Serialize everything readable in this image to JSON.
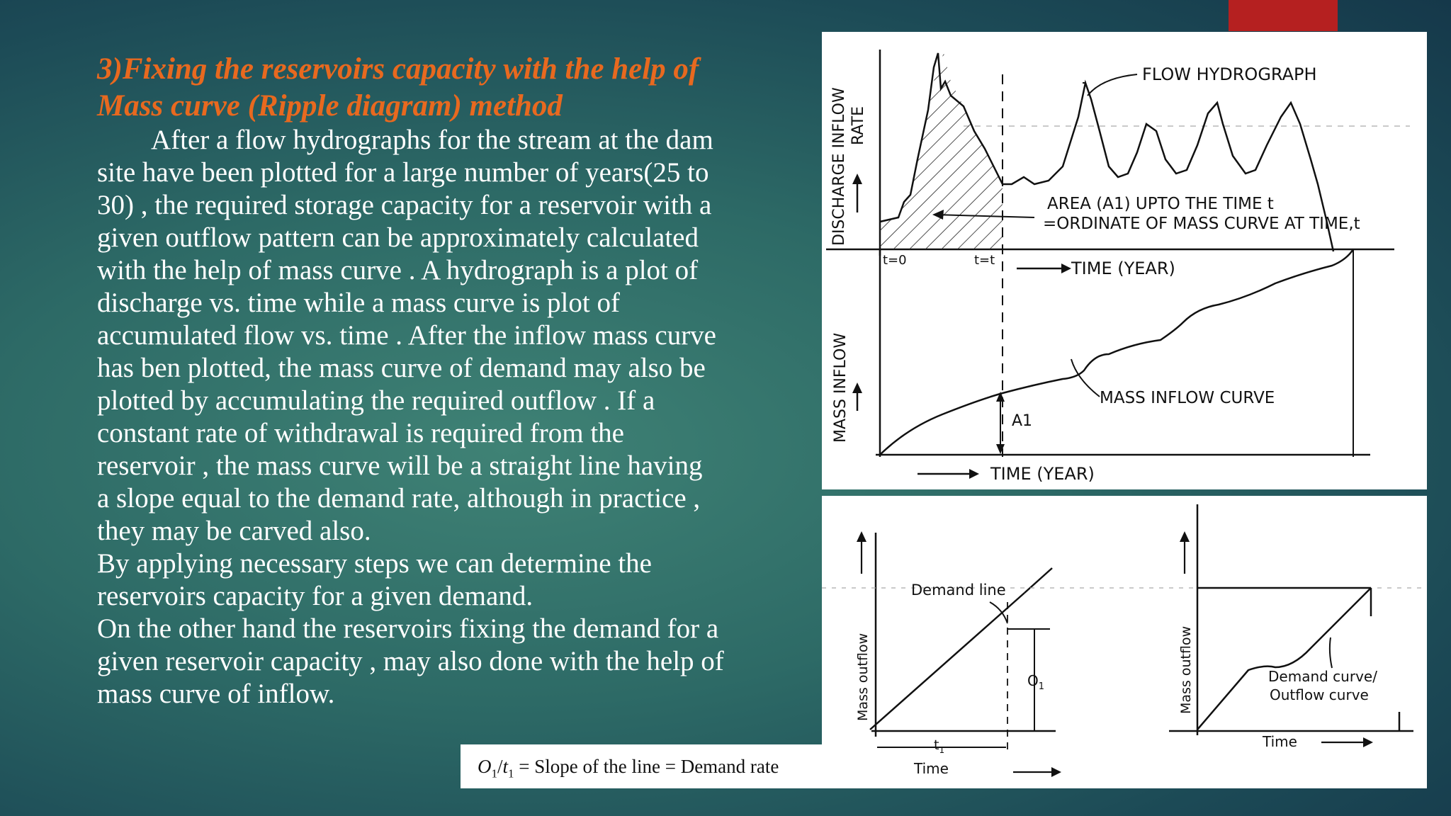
{
  "heading": {
    "line1": "3)Fixing the reservoirs capacity with the help of",
    "line2": "Mass curve (Ripple diagram) method"
  },
  "body": {
    "lines": [
      "After a flow hydrographs for the stream at the dam",
      "site have been plotted for a large number of years(25 to",
      "30) , the required storage capacity for a reservoir with a",
      "given outflow pattern can be approximately calculated",
      "with the help of mass curve . A hydrograph is a plot of",
      "discharge vs. time while a mass curve is plot of",
      "accumulated flow vs. time . After the inflow mass curve",
      "has ben plotted, the mass curve of demand may also be",
      "plotted by accumulating the required outflow . If a",
      "constant rate of  withdrawal is required from the",
      "reservoir , the mass curve will be a straight  line having",
      "a slope equal to the demand rate, although in practice ,",
      "they may be carved also.",
      "By applying necessary steps we can determine the",
      "reservoirs capacity for a given demand.",
      "On the other hand the reservoirs fixing the demand for a",
      "given reservoir capacity , may also done with the help of",
      "mass curve of inflow."
    ]
  },
  "formula": {
    "o": "O",
    "o_sub": "1",
    "slash": "/",
    "t": "t",
    "t_sub": "1",
    "rest": " = Slope of the line = Demand rate"
  },
  "diagram_top": {
    "y_label_top_1": "DISCHARGE INFLOW",
    "y_label_top_2": "RATE",
    "flow_hydrograph": "FLOW HYDROGRAPH",
    "area_note_1": "AREA (A1) UPTO  THE TIME t",
    "area_note_2": "=ORDINATE OF MASS CURVE AT  TIME,t",
    "t0": "t=0",
    "tt": "t=t",
    "time_year_1": "TIME  (YEAR)",
    "y_label_bottom": "MASS INFLOW",
    "mass_inflow_curve": "MASS INFLOW CURVE",
    "a1": "A1",
    "time_year_2": "TIME  (YEAR)"
  },
  "diagram_bottom": {
    "left_y_label": "Mass  outflow",
    "demand_line": "Demand  line",
    "o1_o": "O",
    "o1_sub": "1",
    "t1_t": "t",
    "t1_sub": "1",
    "time_left": "Time",
    "right_y_label": "Mass  outflow",
    "demand_curve_1": "Demand  curve/",
    "demand_curve_2": "Outflow  curve",
    "time_right": "Time"
  },
  "colors": {
    "heading": "#e8691f",
    "body_text": "#ffffff",
    "accent_bar": "#b52020",
    "background": "#2d6a66"
  }
}
